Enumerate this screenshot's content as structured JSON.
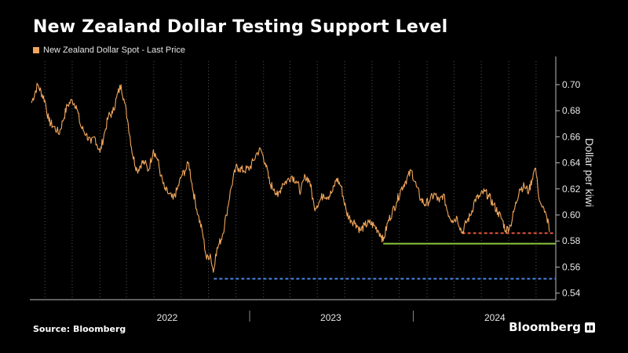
{
  "header": {
    "title": "New Zealand Dollar Testing Support Level",
    "legend_label": "New Zealand Dollar Spot - Last Price"
  },
  "footer": {
    "source": "Source: Bloomberg",
    "brand": "Bloomberg"
  },
  "colors": {
    "series": "#f0a65c",
    "support_red": "#e0533a",
    "support_green": "#8dc63f",
    "support_blue": "#4a86e8",
    "grid": "#555555",
    "axis_text": "#e6e6e6"
  },
  "chart_data": {
    "type": "line",
    "ylabel": "Dollar per kiwi",
    "ylim": [
      0.535,
      0.718
    ],
    "yticks": [
      0.54,
      0.56,
      0.58,
      0.6,
      0.62,
      0.64,
      0.66,
      0.68,
      0.7
    ],
    "ytick_labels": [
      "0.54",
      "0.56",
      "0.58",
      "0.60",
      "0.62",
      "0.64",
      "0.66",
      "0.68",
      "0.70"
    ],
    "xlim": [
      "2021-09-01",
      "2024-10-31"
    ],
    "x_labels": [
      {
        "label": "2022",
        "date": "2022-07-01"
      },
      {
        "label": "2023",
        "date": "2023-07-01"
      },
      {
        "label": "2024",
        "date": "2024-07-01"
      }
    ],
    "year_dividers": [
      "2023-01-01",
      "2024-01-01"
    ],
    "grid": "vertical dotted",
    "series": [
      {
        "name": "New Zealand Dollar Spot - Last Price",
        "points": [
          [
            "2021-09-01",
            0.686
          ],
          [
            "2021-09-15",
            0.7
          ],
          [
            "2021-10-01",
            0.688
          ],
          [
            "2021-10-10",
            0.672
          ],
          [
            "2021-10-20",
            0.668
          ],
          [
            "2021-10-28",
            0.665
          ],
          [
            "2021-11-01",
            0.662
          ],
          [
            "2021-11-10",
            0.672
          ],
          [
            "2021-11-20",
            0.684
          ],
          [
            "2021-12-01",
            0.688
          ],
          [
            "2021-12-10",
            0.684
          ],
          [
            "2021-12-20",
            0.668
          ],
          [
            "2022-01-01",
            0.662
          ],
          [
            "2022-01-12",
            0.655
          ],
          [
            "2022-01-20",
            0.66
          ],
          [
            "2022-02-01",
            0.648
          ],
          [
            "2022-02-12",
            0.664
          ],
          [
            "2022-02-20",
            0.676
          ],
          [
            "2022-03-01",
            0.678
          ],
          [
            "2022-03-10",
            0.69
          ],
          [
            "2022-03-20",
            0.7
          ],
          [
            "2022-03-28",
            0.686
          ],
          [
            "2022-04-05",
            0.67
          ],
          [
            "2022-04-15",
            0.646
          ],
          [
            "2022-04-25",
            0.634
          ],
          [
            "2022-05-05",
            0.64
          ],
          [
            "2022-05-12",
            0.64
          ],
          [
            "2022-05-20",
            0.634
          ],
          [
            "2022-05-31",
            0.65
          ],
          [
            "2022-06-10",
            0.642
          ],
          [
            "2022-06-17",
            0.63
          ],
          [
            "2022-06-25",
            0.62
          ],
          [
            "2022-07-05",
            0.616
          ],
          [
            "2022-07-14",
            0.612
          ],
          [
            "2022-07-24",
            0.62
          ],
          [
            "2022-08-02",
            0.63
          ],
          [
            "2022-08-10",
            0.634
          ],
          [
            "2022-08-18",
            0.64
          ],
          [
            "2022-08-28",
            0.618
          ],
          [
            "2022-09-08",
            0.6
          ],
          [
            "2022-09-18",
            0.586
          ],
          [
            "2022-09-27",
            0.566
          ],
          [
            "2022-10-05",
            0.57
          ],
          [
            "2022-10-12",
            0.556
          ],
          [
            "2022-10-17",
            0.57
          ],
          [
            "2022-10-25",
            0.578
          ],
          [
            "2022-11-01",
            0.584
          ],
          [
            "2022-11-10",
            0.6
          ],
          [
            "2022-11-20",
            0.62
          ],
          [
            "2022-12-01",
            0.636
          ],
          [
            "2022-12-08",
            0.636
          ],
          [
            "2022-12-18",
            0.634
          ],
          [
            "2023-01-01",
            0.636
          ],
          [
            "2023-01-10",
            0.642
          ],
          [
            "2023-01-18",
            0.648
          ],
          [
            "2023-01-26",
            0.65
          ],
          [
            "2023-02-05",
            0.64
          ],
          [
            "2023-02-15",
            0.624
          ],
          [
            "2023-02-25",
            0.62
          ],
          [
            "2023-03-05",
            0.614
          ],
          [
            "2023-03-15",
            0.624
          ],
          [
            "2023-03-25",
            0.626
          ],
          [
            "2023-04-05",
            0.63
          ],
          [
            "2023-04-15",
            0.626
          ],
          [
            "2023-04-25",
            0.618
          ],
          [
            "2023-05-05",
            0.63
          ],
          [
            "2023-05-15",
            0.626
          ],
          [
            "2023-05-25",
            0.606
          ],
          [
            "2023-06-05",
            0.61
          ],
          [
            "2023-06-15",
            0.616
          ],
          [
            "2023-06-25",
            0.614
          ],
          [
            "2023-07-05",
            0.618
          ],
          [
            "2023-07-14",
            0.628
          ],
          [
            "2023-07-24",
            0.622
          ],
          [
            "2023-08-05",
            0.602
          ],
          [
            "2023-08-15",
            0.596
          ],
          [
            "2023-08-25",
            0.594
          ],
          [
            "2023-09-05",
            0.588
          ],
          [
            "2023-09-15",
            0.592
          ],
          [
            "2023-09-25",
            0.594
          ],
          [
            "2023-10-05",
            0.592
          ],
          [
            "2023-10-15",
            0.588
          ],
          [
            "2023-10-22",
            0.584
          ],
          [
            "2023-10-26",
            0.58
          ],
          [
            "2023-11-05",
            0.594
          ],
          [
            "2023-11-15",
            0.602
          ],
          [
            "2023-11-25",
            0.61
          ],
          [
            "2023-12-05",
            0.62
          ],
          [
            "2023-12-15",
            0.626
          ],
          [
            "2023-12-28",
            0.634
          ],
          [
            "2024-01-08",
            0.622
          ],
          [
            "2024-01-18",
            0.612
          ],
          [
            "2024-01-28",
            0.608
          ],
          [
            "2024-02-08",
            0.612
          ],
          [
            "2024-02-18",
            0.616
          ],
          [
            "2024-02-28",
            0.61
          ],
          [
            "2024-03-08",
            0.616
          ],
          [
            "2024-03-18",
            0.602
          ],
          [
            "2024-03-28",
            0.596
          ],
          [
            "2024-04-08",
            0.598
          ],
          [
            "2024-04-19",
            0.586
          ],
          [
            "2024-04-28",
            0.594
          ],
          [
            "2024-05-08",
            0.6
          ],
          [
            "2024-05-18",
            0.612
          ],
          [
            "2024-05-28",
            0.614
          ],
          [
            "2024-06-08",
            0.618
          ],
          [
            "2024-06-18",
            0.614
          ],
          [
            "2024-06-28",
            0.608
          ],
          [
            "2024-07-08",
            0.602
          ],
          [
            "2024-07-18",
            0.596
          ],
          [
            "2024-07-25",
            0.588
          ],
          [
            "2024-08-05",
            0.592
          ],
          [
            "2024-08-15",
            0.606
          ],
          [
            "2024-08-25",
            0.62
          ],
          [
            "2024-09-05",
            0.622
          ],
          [
            "2024-09-15",
            0.618
          ],
          [
            "2024-09-25",
            0.632
          ],
          [
            "2024-09-30",
            0.636
          ],
          [
            "2024-10-05",
            0.62
          ],
          [
            "2024-10-10",
            0.61
          ],
          [
            "2024-10-15",
            0.606
          ],
          [
            "2024-10-20",
            0.602
          ],
          [
            "2024-10-25",
            0.598
          ],
          [
            "2024-10-29",
            0.594
          ],
          [
            "2024-10-31",
            0.587
          ]
        ]
      }
    ],
    "reference_lines": [
      {
        "value": 0.586,
        "from": "2024-04-19",
        "to": "2024-10-31",
        "style": "dashed",
        "color": "#e0533a"
      },
      {
        "value": 0.578,
        "from": "2023-10-26",
        "to": "2024-10-31",
        "style": "solid",
        "color": "#8dc63f"
      },
      {
        "value": 0.551,
        "from": "2022-10-13",
        "to": "2024-10-31",
        "style": "dashed",
        "color": "#4a86e8"
      }
    ]
  }
}
